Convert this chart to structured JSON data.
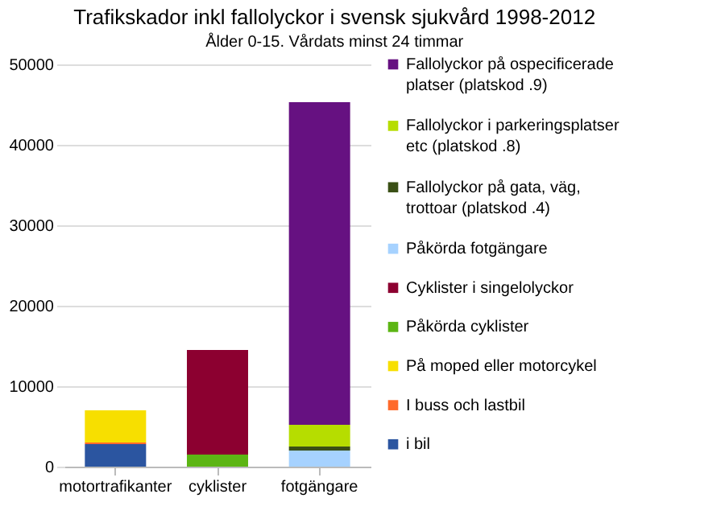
{
  "chart_data": {
    "type": "bar",
    "stacked": true,
    "title": "Trafikskador inkl fallolyckor i svensk sjukvård 1998-2012",
    "subtitle": "Ålder 0-15. Vårdats minst 24 timmar",
    "categories": [
      "motortrafikanter",
      "cyklister",
      "fotgängare"
    ],
    "series": [
      {
        "name": "i bil",
        "color": "#2b55a0",
        "values": [
          2800,
          null,
          null
        ]
      },
      {
        "name": "I buss och lastbil",
        "color": "#ff6a2b",
        "values": [
          200,
          null,
          null
        ]
      },
      {
        "name": "På moped eller motorcykel",
        "color": "#f7df00",
        "values": [
          4000,
          null,
          null
        ]
      },
      {
        "name": "Påkörda cyklister",
        "color": "#5cb514",
        "values": [
          null,
          1500,
          null
        ]
      },
      {
        "name": "Cyklister i singelolyckor",
        "color": "#8c0030",
        "values": [
          null,
          13000,
          null
        ]
      },
      {
        "name": "Påkörda fotgängare",
        "color": "#a6d2ff",
        "values": [
          null,
          null,
          2000
        ]
      },
      {
        "name": "Fallolyckor på gata, väg, trottoar (platskod .4)",
        "color": "#3a4f15",
        "values": [
          null,
          null,
          500
        ]
      },
      {
        "name": "Fallolyckor i parkeringsplatser etc (platskod .8)",
        "color": "#b6dd00",
        "values": [
          null,
          null,
          2700
        ]
      },
      {
        "name": "Fallolyckor på ospecificerade platser (platskod .9)",
        "color": "#661181",
        "values": [
          null,
          null,
          40100
        ]
      }
    ],
    "ylim": [
      0,
      50000
    ],
    "yticks": [
      0,
      10000,
      20000,
      30000,
      40000,
      50000
    ],
    "grid": "y",
    "legend": "right"
  }
}
